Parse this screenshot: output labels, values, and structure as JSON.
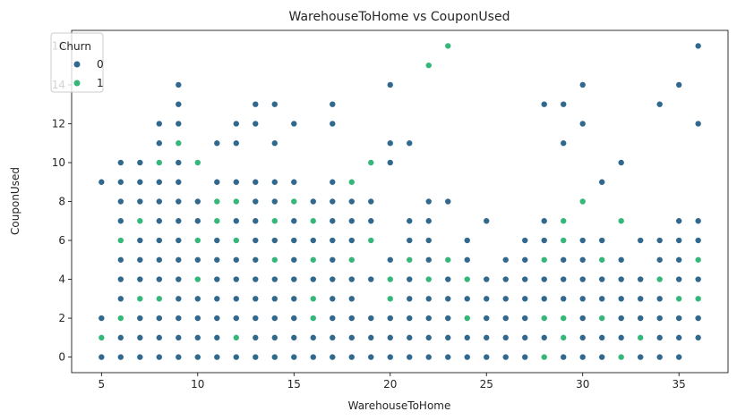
{
  "chart_data": {
    "type": "scatter",
    "title": "WarehouseToHome vs CouponUsed",
    "xlabel": "WarehouseToHome",
    "ylabel": "CouponUsed",
    "xlim": [
      3.45,
      37.55
    ],
    "ylim": [
      -0.8,
      16.8
    ],
    "xticks": [
      5,
      10,
      15,
      20,
      25,
      30,
      35
    ],
    "yticks": [
      0,
      2,
      4,
      6,
      8,
      10,
      12,
      14,
      16
    ],
    "grid": false,
    "legend": {
      "title": "Churn",
      "placement": "upper-left",
      "entries": [
        "0",
        "1"
      ]
    },
    "colors": {
      "0": "#31688e",
      "1": "#35b779"
    },
    "series": [
      {
        "name": "0",
        "points": [
          [
            5,
            0
          ],
          [
            5,
            2
          ],
          [
            5,
            9
          ],
          [
            6,
            0
          ],
          [
            6,
            1
          ],
          [
            6,
            3
          ],
          [
            6,
            4
          ],
          [
            6,
            5
          ],
          [
            6,
            7
          ],
          [
            6,
            8
          ],
          [
            6,
            9
          ],
          [
            6,
            10
          ],
          [
            7,
            0
          ],
          [
            7,
            1
          ],
          [
            7,
            2
          ],
          [
            7,
            4
          ],
          [
            7,
            5
          ],
          [
            7,
            6
          ],
          [
            7,
            8
          ],
          [
            7,
            9
          ],
          [
            7,
            10
          ],
          [
            8,
            0
          ],
          [
            8,
            1
          ],
          [
            8,
            2
          ],
          [
            8,
            4
          ],
          [
            8,
            5
          ],
          [
            8,
            6
          ],
          [
            8,
            7
          ],
          [
            8,
            8
          ],
          [
            8,
            9
          ],
          [
            8,
            11
          ],
          [
            8,
            12
          ],
          [
            9,
            0
          ],
          [
            9,
            1
          ],
          [
            9,
            2
          ],
          [
            9,
            3
          ],
          [
            9,
            4
          ],
          [
            9,
            5
          ],
          [
            9,
            6
          ],
          [
            9,
            7
          ],
          [
            9,
            8
          ],
          [
            9,
            9
          ],
          [
            9,
            10
          ],
          [
            9,
            12
          ],
          [
            9,
            13
          ],
          [
            9,
            14
          ],
          [
            10,
            0
          ],
          [
            10,
            1
          ],
          [
            10,
            2
          ],
          [
            10,
            3
          ],
          [
            10,
            5
          ],
          [
            10,
            7
          ],
          [
            10,
            8
          ],
          [
            11,
            0
          ],
          [
            11,
            1
          ],
          [
            11,
            2
          ],
          [
            11,
            3
          ],
          [
            11,
            4
          ],
          [
            11,
            5
          ],
          [
            11,
            6
          ],
          [
            11,
            9
          ],
          [
            11,
            11
          ],
          [
            12,
            0
          ],
          [
            12,
            2
          ],
          [
            12,
            3
          ],
          [
            12,
            4
          ],
          [
            12,
            5
          ],
          [
            12,
            7
          ],
          [
            12,
            9
          ],
          [
            12,
            11
          ],
          [
            12,
            12
          ],
          [
            13,
            0
          ],
          [
            13,
            1
          ],
          [
            13,
            2
          ],
          [
            13,
            3
          ],
          [
            13,
            4
          ],
          [
            13,
            5
          ],
          [
            13,
            6
          ],
          [
            13,
            7
          ],
          [
            13,
            8
          ],
          [
            13,
            9
          ],
          [
            13,
            12
          ],
          [
            13,
            13
          ],
          [
            14,
            0
          ],
          [
            14,
            1
          ],
          [
            14,
            2
          ],
          [
            14,
            3
          ],
          [
            14,
            4
          ],
          [
            14,
            6
          ],
          [
            14,
            8
          ],
          [
            14,
            9
          ],
          [
            14,
            11
          ],
          [
            14,
            13
          ],
          [
            15,
            0
          ],
          [
            15,
            1
          ],
          [
            15,
            2
          ],
          [
            15,
            3
          ],
          [
            15,
            4
          ],
          [
            15,
            5
          ],
          [
            15,
            6
          ],
          [
            15,
            7
          ],
          [
            15,
            9
          ],
          [
            15,
            12
          ],
          [
            16,
            0
          ],
          [
            16,
            1
          ],
          [
            16,
            4
          ],
          [
            16,
            6
          ],
          [
            16,
            8
          ],
          [
            17,
            0
          ],
          [
            17,
            1
          ],
          [
            17,
            2
          ],
          [
            17,
            3
          ],
          [
            17,
            4
          ],
          [
            17,
            5
          ],
          [
            17,
            6
          ],
          [
            17,
            7
          ],
          [
            17,
            8
          ],
          [
            17,
            9
          ],
          [
            17,
            12
          ],
          [
            17,
            13
          ],
          [
            18,
            0
          ],
          [
            18,
            1
          ],
          [
            18,
            2
          ],
          [
            18,
            3
          ],
          [
            18,
            4
          ],
          [
            18,
            6
          ],
          [
            18,
            7
          ],
          [
            18,
            8
          ],
          [
            19,
            0
          ],
          [
            19,
            1
          ],
          [
            19,
            2
          ],
          [
            19,
            4
          ],
          [
            19,
            7
          ],
          [
            19,
            8
          ],
          [
            20,
            0
          ],
          [
            20,
            1
          ],
          [
            20,
            2
          ],
          [
            20,
            5
          ],
          [
            20,
            10
          ],
          [
            20,
            11
          ],
          [
            20,
            14
          ],
          [
            21,
            0
          ],
          [
            21,
            1
          ],
          [
            21,
            2
          ],
          [
            21,
            3
          ],
          [
            21,
            4
          ],
          [
            21,
            6
          ],
          [
            21,
            7
          ],
          [
            21,
            11
          ],
          [
            22,
            0
          ],
          [
            22,
            1
          ],
          [
            22,
            2
          ],
          [
            22,
            3
          ],
          [
            22,
            5
          ],
          [
            22,
            6
          ],
          [
            22,
            7
          ],
          [
            22,
            8
          ],
          [
            23,
            0
          ],
          [
            23,
            1
          ],
          [
            23,
            2
          ],
          [
            23,
            3
          ],
          [
            23,
            4
          ],
          [
            23,
            8
          ],
          [
            24,
            0
          ],
          [
            24,
            1
          ],
          [
            24,
            3
          ],
          [
            24,
            5
          ],
          [
            24,
            6
          ],
          [
            25,
            0
          ],
          [
            25,
            1
          ],
          [
            25,
            2
          ],
          [
            25,
            3
          ],
          [
            25,
            4
          ],
          [
            25,
            7
          ],
          [
            26,
            0
          ],
          [
            26,
            1
          ],
          [
            26,
            2
          ],
          [
            26,
            3
          ],
          [
            26,
            4
          ],
          [
            26,
            5
          ],
          [
            27,
            0
          ],
          [
            27,
            1
          ],
          [
            27,
            2
          ],
          [
            27,
            3
          ],
          [
            27,
            4
          ],
          [
            27,
            5
          ],
          [
            27,
            6
          ],
          [
            28,
            1
          ],
          [
            28,
            3
          ],
          [
            28,
            4
          ],
          [
            28,
            6
          ],
          [
            28,
            7
          ],
          [
            28,
            13
          ],
          [
            29,
            0
          ],
          [
            29,
            1
          ],
          [
            29,
            3
          ],
          [
            29,
            4
          ],
          [
            29,
            5
          ],
          [
            29,
            11
          ],
          [
            29,
            13
          ],
          [
            30,
            0
          ],
          [
            30,
            1
          ],
          [
            30,
            2
          ],
          [
            30,
            3
          ],
          [
            30,
            4
          ],
          [
            30,
            5
          ],
          [
            30,
            6
          ],
          [
            30,
            12
          ],
          [
            30,
            14
          ],
          [
            31,
            0
          ],
          [
            31,
            1
          ],
          [
            31,
            3
          ],
          [
            31,
            4
          ],
          [
            31,
            6
          ],
          [
            31,
            9
          ],
          [
            32,
            1
          ],
          [
            32,
            2
          ],
          [
            32,
            3
          ],
          [
            32,
            4
          ],
          [
            32,
            5
          ],
          [
            32,
            10
          ],
          [
            33,
            0
          ],
          [
            33,
            2
          ],
          [
            33,
            3
          ],
          [
            33,
            4
          ],
          [
            33,
            6
          ],
          [
            34,
            0
          ],
          [
            34,
            1
          ],
          [
            34,
            2
          ],
          [
            34,
            3
          ],
          [
            34,
            5
          ],
          [
            34,
            6
          ],
          [
            34,
            13
          ],
          [
            35,
            0
          ],
          [
            35,
            1
          ],
          [
            35,
            2
          ],
          [
            35,
            4
          ],
          [
            35,
            5
          ],
          [
            35,
            6
          ],
          [
            35,
            7
          ],
          [
            35,
            14
          ],
          [
            36,
            1
          ],
          [
            36,
            2
          ],
          [
            36,
            4
          ],
          [
            36,
            6
          ],
          [
            36,
            7
          ],
          [
            36,
            12
          ],
          [
            36,
            16
          ]
        ]
      },
      {
        "name": "1",
        "points": [
          [
            5,
            1
          ],
          [
            6,
            2
          ],
          [
            6,
            6
          ],
          [
            7,
            3
          ],
          [
            7,
            7
          ],
          [
            8,
            3
          ],
          [
            8,
            10
          ],
          [
            9,
            11
          ],
          [
            10,
            4
          ],
          [
            10,
            6
          ],
          [
            10,
            10
          ],
          [
            11,
            7
          ],
          [
            11,
            8
          ],
          [
            12,
            1
          ],
          [
            12,
            6
          ],
          [
            12,
            8
          ],
          [
            14,
            5
          ],
          [
            14,
            7
          ],
          [
            15,
            8
          ],
          [
            16,
            2
          ],
          [
            16,
            3
          ],
          [
            16,
            5
          ],
          [
            16,
            7
          ],
          [
            18,
            5
          ],
          [
            18,
            9
          ],
          [
            19,
            6
          ],
          [
            19,
            10
          ],
          [
            20,
            3
          ],
          [
            20,
            4
          ],
          [
            21,
            5
          ],
          [
            22,
            4
          ],
          [
            22,
            15
          ],
          [
            23,
            5
          ],
          [
            23,
            16
          ],
          [
            24,
            2
          ],
          [
            24,
            4
          ],
          [
            28,
            0
          ],
          [
            28,
            2
          ],
          [
            28,
            5
          ],
          [
            29,
            1
          ],
          [
            29,
            2
          ],
          [
            29,
            6
          ],
          [
            29,
            7
          ],
          [
            30,
            8
          ],
          [
            31,
            2
          ],
          [
            31,
            5
          ],
          [
            32,
            0
          ],
          [
            32,
            7
          ],
          [
            33,
            1
          ],
          [
            34,
            4
          ],
          [
            35,
            3
          ],
          [
            36,
            3
          ],
          [
            36,
            5
          ]
        ]
      }
    ]
  }
}
